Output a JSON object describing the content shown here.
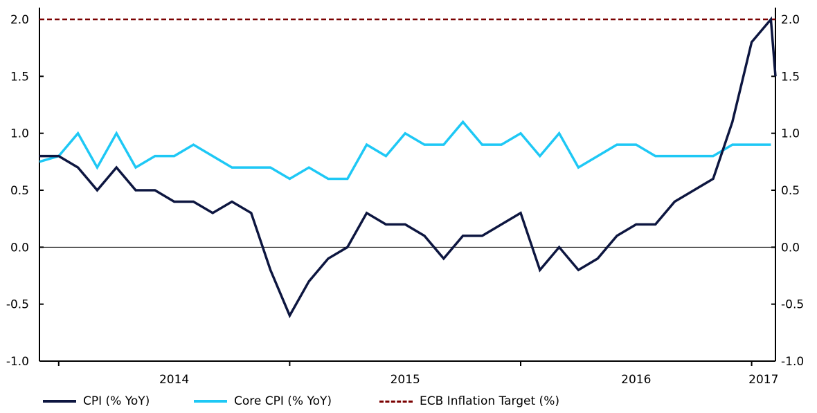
{
  "chart_data": {
    "type": "line",
    "y_ticks": [
      "2.0",
      "1.5",
      "1.0",
      "0.5",
      "0.0",
      "-0.5",
      "-1.0"
    ],
    "ylim": [
      -1.0,
      2.0
    ],
    "x_tick_labels": [
      "2014",
      "2015",
      "2016",
      "2017"
    ],
    "x": [
      "2013-12",
      "2014-01",
      "2014-02",
      "2014-03",
      "2014-04",
      "2014-05",
      "2014-06",
      "2014-07",
      "2014-08",
      "2014-09",
      "2014-10",
      "2014-11",
      "2014-12",
      "2015-01",
      "2015-02",
      "2015-03",
      "2015-04",
      "2015-05",
      "2015-06",
      "2015-07",
      "2015-08",
      "2015-09",
      "2015-10",
      "2015-11",
      "2015-12",
      "2016-01",
      "2016-02",
      "2016-03",
      "2016-04",
      "2016-05",
      "2016-06",
      "2016-07",
      "2016-08",
      "2016-09",
      "2016-10",
      "2016-11",
      "2016-12",
      "2017-01",
      "2017-02",
      "2017-03"
    ],
    "series": [
      {
        "name": "CPI (% YoY)",
        "color": "#0d1640",
        "values": [
          0.8,
          0.8,
          0.7,
          0.5,
          0.7,
          0.5,
          0.5,
          0.4,
          0.4,
          0.3,
          0.4,
          0.3,
          -0.2,
          -0.6,
          -0.3,
          -0.1,
          0.0,
          0.3,
          0.2,
          0.2,
          0.1,
          -0.1,
          0.1,
          0.1,
          0.2,
          0.3,
          -0.2,
          0.0,
          -0.2,
          -0.1,
          0.1,
          0.2,
          0.2,
          0.4,
          0.5,
          0.6,
          1.1,
          1.8,
          2.0,
          1.5
        ]
      },
      {
        "name": "Core CPI (% YoY)",
        "color": "#1ec8f5",
        "values": [
          0.75,
          0.8,
          1.0,
          0.7,
          1.0,
          0.7,
          0.8,
          0.8,
          0.9,
          0.8,
          0.7,
          0.7,
          0.7,
          0.6,
          0.7,
          0.6,
          0.6,
          0.9,
          0.8,
          1.0,
          0.9,
          0.9,
          1.1,
          0.9,
          0.9,
          1.0,
          0.8,
          1.0,
          0.7,
          0.8,
          0.9,
          0.9,
          0.8,
          0.8,
          0.8,
          0.8,
          0.9,
          0.9,
          0.9,
          null
        ]
      },
      {
        "name": "ECB Inflation Target (%)",
        "color": "#7a0000",
        "style": "dashed",
        "value": 2.0
      }
    ],
    "grid": false,
    "legend_position": "bottom"
  }
}
